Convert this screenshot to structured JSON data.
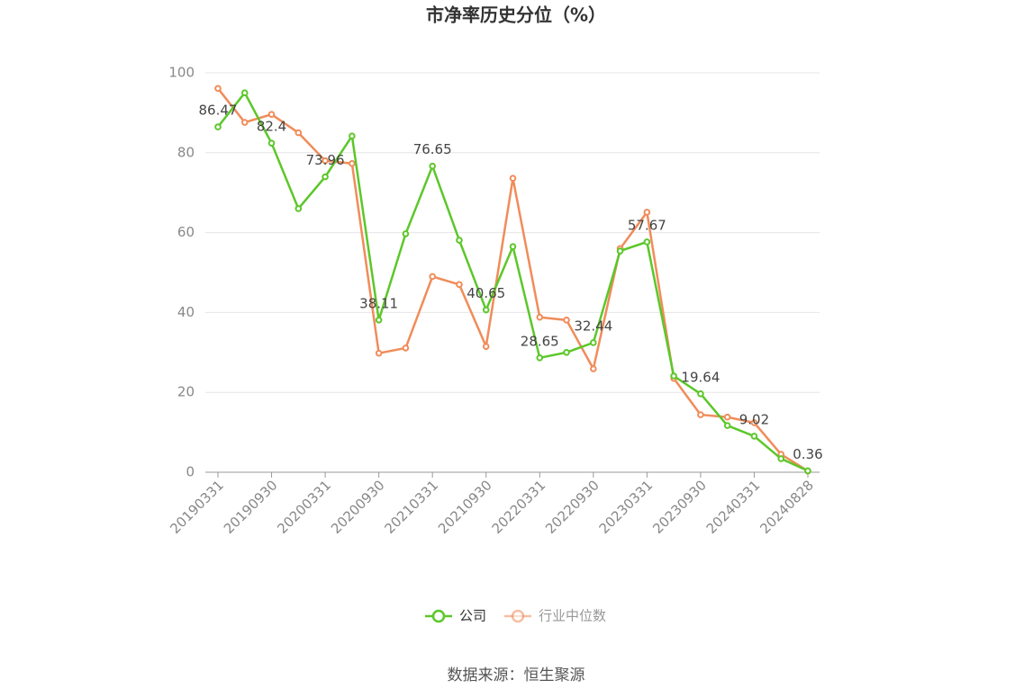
{
  "chart_data": {
    "type": "line",
    "title": "市净率历史分位（%）",
    "categories": [
      "20190331",
      null,
      "20190930",
      null,
      "20200331",
      null,
      "20200930",
      null,
      "20210331",
      null,
      "20210930",
      null,
      "20220331",
      null,
      "20220930",
      null,
      "20230331",
      null,
      "20230930",
      null,
      "20240331",
      null,
      "20240828"
    ],
    "series": [
      {
        "name": "公司",
        "color": "#5cc72a",
        "values": [
          86.47,
          95.0,
          82.4,
          66.0,
          73.96,
          84.2,
          38.11,
          59.7,
          76.65,
          58.1,
          40.65,
          56.5,
          28.65,
          30.0,
          32.44,
          55.4,
          57.67,
          24.1,
          19.64,
          11.7,
          9.02,
          3.4,
          0.36
        ]
      },
      {
        "name": "行业中位数",
        "color": "#f08c5a",
        "values": [
          96.1,
          87.6,
          89.6,
          85.0,
          78.0,
          77.3,
          29.8,
          31.1,
          49.0,
          47.0,
          31.5,
          73.6,
          38.8,
          38.1,
          25.9,
          56.0,
          65.1,
          23.5,
          14.4,
          13.8,
          12.4,
          4.5,
          0.3
        ]
      }
    ],
    "ylim": [
      0,
      100
    ],
    "yticks": [
      0,
      20,
      40,
      60,
      80,
      100
    ],
    "grid": true,
    "source": "数据来源：恒生聚源"
  }
}
